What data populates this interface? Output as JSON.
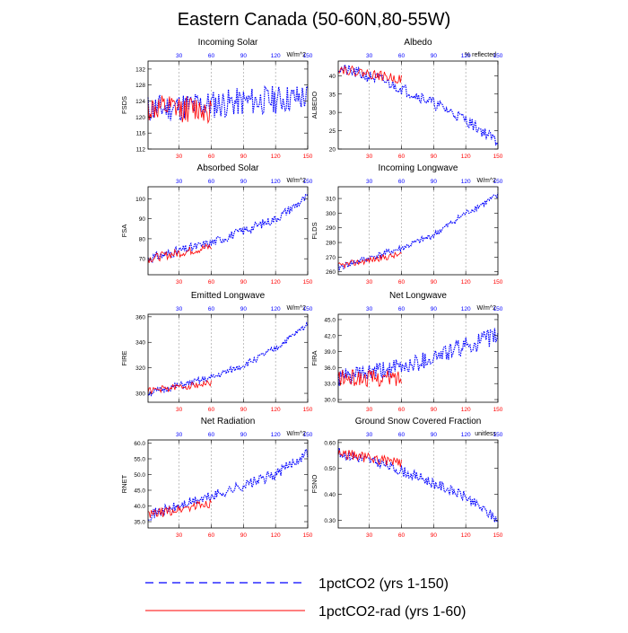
{
  "title": "Eastern Canada (50-60N,80-55W)",
  "legend": [
    {
      "label": "1pctCO2 (yrs 1-150)",
      "color": "#0000ff",
      "style": "dashed"
    },
    {
      "label": "1pctCO2-rad (yrs 1-60)",
      "color": "#ff0000",
      "style": "solid"
    }
  ],
  "colors": {
    "series_a": "#0000ff",
    "series_b": "#ff0000",
    "top_ticks": "#0000ff",
    "bottom_ticks": "#ff0000"
  },
  "chart_data": [
    {
      "type": "line",
      "title": "Incoming Solar",
      "ylabel": "FSDS",
      "units": "W/m^2",
      "xlim": [
        1,
        150
      ],
      "ylim": [
        112,
        134
      ],
      "yticks": [
        112,
        116,
        120,
        124,
        128,
        132
      ],
      "yticklabels": [
        "112",
        "116",
        "120",
        "124",
        "128",
        "132"
      ],
      "xticks": [
        30,
        60,
        90,
        120,
        150
      ],
      "xticklabels": [
        "30",
        "60",
        "90",
        "120",
        "150"
      ],
      "series": [
        {
          "name": "1pctCO2 (yrs 1-150)",
          "x_range": [
            1,
            150
          ],
          "trend": [
            [
              1,
              122
            ],
            [
              150,
              125
            ]
          ],
          "noise": 3.6,
          "seed": 11
        },
        {
          "name": "1pctCO2-rad (yrs 1-60)",
          "x_range": [
            1,
            60
          ],
          "trend": [
            [
              1,
              122
            ],
            [
              60,
              122
            ]
          ],
          "noise": 3.4,
          "seed": 12
        }
      ]
    },
    {
      "type": "line",
      "title": "Albedo",
      "ylabel": "ALBEDO",
      "units": "% reflected",
      "xlim": [
        1,
        150
      ],
      "ylim": [
        20,
        44
      ],
      "yticks": [
        20,
        25,
        30,
        35,
        40
      ],
      "yticklabels": [
        "20",
        "25",
        "30",
        "35",
        "40"
      ],
      "xticks": [
        30,
        60,
        90,
        120,
        150
      ],
      "xticklabels": [
        "30",
        "60",
        "90",
        "120",
        "150"
      ],
      "series": [
        {
          "name": "1pctCO2 (yrs 1-150)",
          "x_range": [
            1,
            150
          ],
          "trend": [
            [
              1,
              42
            ],
            [
              40,
              39
            ],
            [
              80,
              34
            ],
            [
              120,
              28
            ],
            [
              150,
              22
            ]
          ],
          "noise": 1.6,
          "seed": 21
        },
        {
          "name": "1pctCO2-rad (yrs 1-60)",
          "x_range": [
            1,
            60
          ],
          "trend": [
            [
              1,
              42
            ],
            [
              60,
              39
            ]
          ],
          "noise": 1.3,
          "seed": 22
        }
      ]
    },
    {
      "type": "line",
      "title": "Absorbed Solar",
      "ylabel": "FSA",
      "units": "W/m^2",
      "xlim": [
        1,
        150
      ],
      "ylim": [
        62,
        106
      ],
      "yticks": [
        70,
        80,
        90,
        100
      ],
      "yticklabels": [
        "70",
        "80",
        "90",
        "100"
      ],
      "xticks": [
        30,
        60,
        90,
        120,
        150
      ],
      "xticklabels": [
        "30",
        "60",
        "90",
        "120",
        "150"
      ],
      "series": [
        {
          "name": "1pctCO2 (yrs 1-150)",
          "x_range": [
            1,
            150
          ],
          "trend": [
            [
              1,
              70
            ],
            [
              60,
              78
            ],
            [
              120,
              90
            ],
            [
              150,
              101
            ]
          ],
          "noise": 2.3,
          "seed": 31
        },
        {
          "name": "1pctCO2-rad (yrs 1-60)",
          "x_range": [
            1,
            60
          ],
          "trend": [
            [
              1,
              70
            ],
            [
              60,
              76
            ]
          ],
          "noise": 2.2,
          "seed": 32
        }
      ]
    },
    {
      "type": "line",
      "title": "Incoming Longwave",
      "ylabel": "FLDS",
      "units": "W/m^2",
      "xlim": [
        1,
        150
      ],
      "ylim": [
        258,
        318
      ],
      "yticks": [
        260,
        270,
        280,
        290,
        300,
        310
      ],
      "yticklabels": [
        "260",
        "270",
        "280",
        "290",
        "300",
        "310"
      ],
      "xticks": [
        30,
        60,
        90,
        120,
        150
      ],
      "xticklabels": [
        "30",
        "60",
        "90",
        "120",
        "150"
      ],
      "series": [
        {
          "name": "1pctCO2 (yrs 1-150)",
          "x_range": [
            1,
            150
          ],
          "trend": [
            [
              1,
              263
            ],
            [
              60,
              276
            ],
            [
              90,
              285
            ],
            [
              120,
              300
            ],
            [
              150,
              312
            ]
          ],
          "noise": 2.2,
          "seed": 41
        },
        {
          "name": "1pctCO2-rad (yrs 1-60)",
          "x_range": [
            1,
            60
          ],
          "trend": [
            [
              1,
              264
            ],
            [
              60,
              272
            ]
          ],
          "noise": 2.2,
          "seed": 42
        }
      ]
    },
    {
      "type": "line",
      "title": "Emitted Longwave",
      "ylabel": "FIRE",
      "units": "W/m^2",
      "xlim": [
        1,
        150
      ],
      "ylim": [
        293,
        362
      ],
      "yticks": [
        300,
        320,
        340,
        360
      ],
      "yticklabels": [
        "300",
        "320",
        "340",
        "360"
      ],
      "xticks": [
        30,
        60,
        90,
        120,
        150
      ],
      "xticklabels": [
        "30",
        "60",
        "90",
        "120",
        "150"
      ],
      "series": [
        {
          "name": "1pctCO2 (yrs 1-150)",
          "x_range": [
            1,
            150
          ],
          "trend": [
            [
              1,
              300
            ],
            [
              60,
              312
            ],
            [
              90,
              322
            ],
            [
              120,
              335
            ],
            [
              150,
              354
            ]
          ],
          "noise": 2.6,
          "seed": 51
        },
        {
          "name": "1pctCO2-rad (yrs 1-60)",
          "x_range": [
            1,
            60
          ],
          "trend": [
            [
              1,
              302
            ],
            [
              60,
              308
            ]
          ],
          "noise": 2.6,
          "seed": 52
        }
      ]
    },
    {
      "type": "line",
      "title": "Net Longwave",
      "ylabel": "FIRA",
      "units": "W/m^2",
      "xlim": [
        1,
        150
      ],
      "ylim": [
        29.5,
        46
      ],
      "yticks": [
        30.0,
        33.0,
        36.0,
        39.0,
        42.0,
        45.0
      ],
      "yticklabels": [
        "30.0",
        "33.0",
        "36.0",
        "39.0",
        "42.0",
        "45.0"
      ],
      "xticks": [
        30,
        60,
        90,
        120,
        150
      ],
      "xticklabels": [
        "30",
        "60",
        "90",
        "120",
        "150"
      ],
      "series": [
        {
          "name": "1pctCO2 (yrs 1-150)",
          "x_range": [
            1,
            150
          ],
          "trend": [
            [
              1,
              34
            ],
            [
              60,
              36
            ],
            [
              120,
              40
            ],
            [
              150,
              42
            ]
          ],
          "noise": 1.7,
          "seed": 61
        },
        {
          "name": "1pctCO2-rad (yrs 1-60)",
          "x_range": [
            1,
            60
          ],
          "trend": [
            [
              1,
              34
            ],
            [
              60,
              34
            ]
          ],
          "noise": 1.6,
          "seed": 62
        }
      ]
    },
    {
      "type": "line",
      "title": "Net Radiation",
      "ylabel": "RNET",
      "units": "W/m^2",
      "xlim": [
        1,
        150
      ],
      "ylim": [
        33,
        61
      ],
      "yticks": [
        35.0,
        40.0,
        45.0,
        50.0,
        55.0,
        60.0
      ],
      "yticklabels": [
        "35.0",
        "40.0",
        "45.0",
        "50.0",
        "55.0",
        "60.0"
      ],
      "xticks": [
        30,
        60,
        90,
        120,
        150
      ],
      "xticklabels": [
        "30",
        "60",
        "90",
        "120",
        "150"
      ],
      "series": [
        {
          "name": "1pctCO2 (yrs 1-150)",
          "x_range": [
            1,
            150
          ],
          "trend": [
            [
              1,
              37
            ],
            [
              60,
              43
            ],
            [
              120,
              50
            ],
            [
              150,
              57
            ]
          ],
          "noise": 1.7,
          "seed": 71
        },
        {
          "name": "1pctCO2-rad (yrs 1-60)",
          "x_range": [
            1,
            60
          ],
          "trend": [
            [
              1,
              37
            ],
            [
              60,
              41
            ]
          ],
          "noise": 1.6,
          "seed": 72
        }
      ]
    },
    {
      "type": "line",
      "title": "Ground Snow Covered Fraction",
      "ylabel": "FSNO",
      "units": "unitless",
      "xlim": [
        1,
        150
      ],
      "ylim": [
        0.27,
        0.61
      ],
      "yticks": [
        0.3,
        0.4,
        0.5,
        0.6
      ],
      "yticklabels": [
        "0.30",
        "0.40",
        "0.50",
        "0.60"
      ],
      "xticks": [
        30,
        60,
        90,
        120,
        150
      ],
      "xticklabels": [
        "30",
        "60",
        "90",
        "120",
        "150"
      ],
      "series": [
        {
          "name": "1pctCO2 (yrs 1-150)",
          "x_range": [
            1,
            150
          ],
          "trend": [
            [
              1,
              0.56
            ],
            [
              40,
              0.52
            ],
            [
              80,
              0.46
            ],
            [
              120,
              0.39
            ],
            [
              150,
              0.3
            ]
          ],
          "noise": 0.02,
          "seed": 81
        },
        {
          "name": "1pctCO2-rad (yrs 1-60)",
          "x_range": [
            1,
            60
          ],
          "trend": [
            [
              1,
              0.56
            ],
            [
              60,
              0.52
            ]
          ],
          "noise": 0.02,
          "seed": 82
        }
      ]
    }
  ]
}
